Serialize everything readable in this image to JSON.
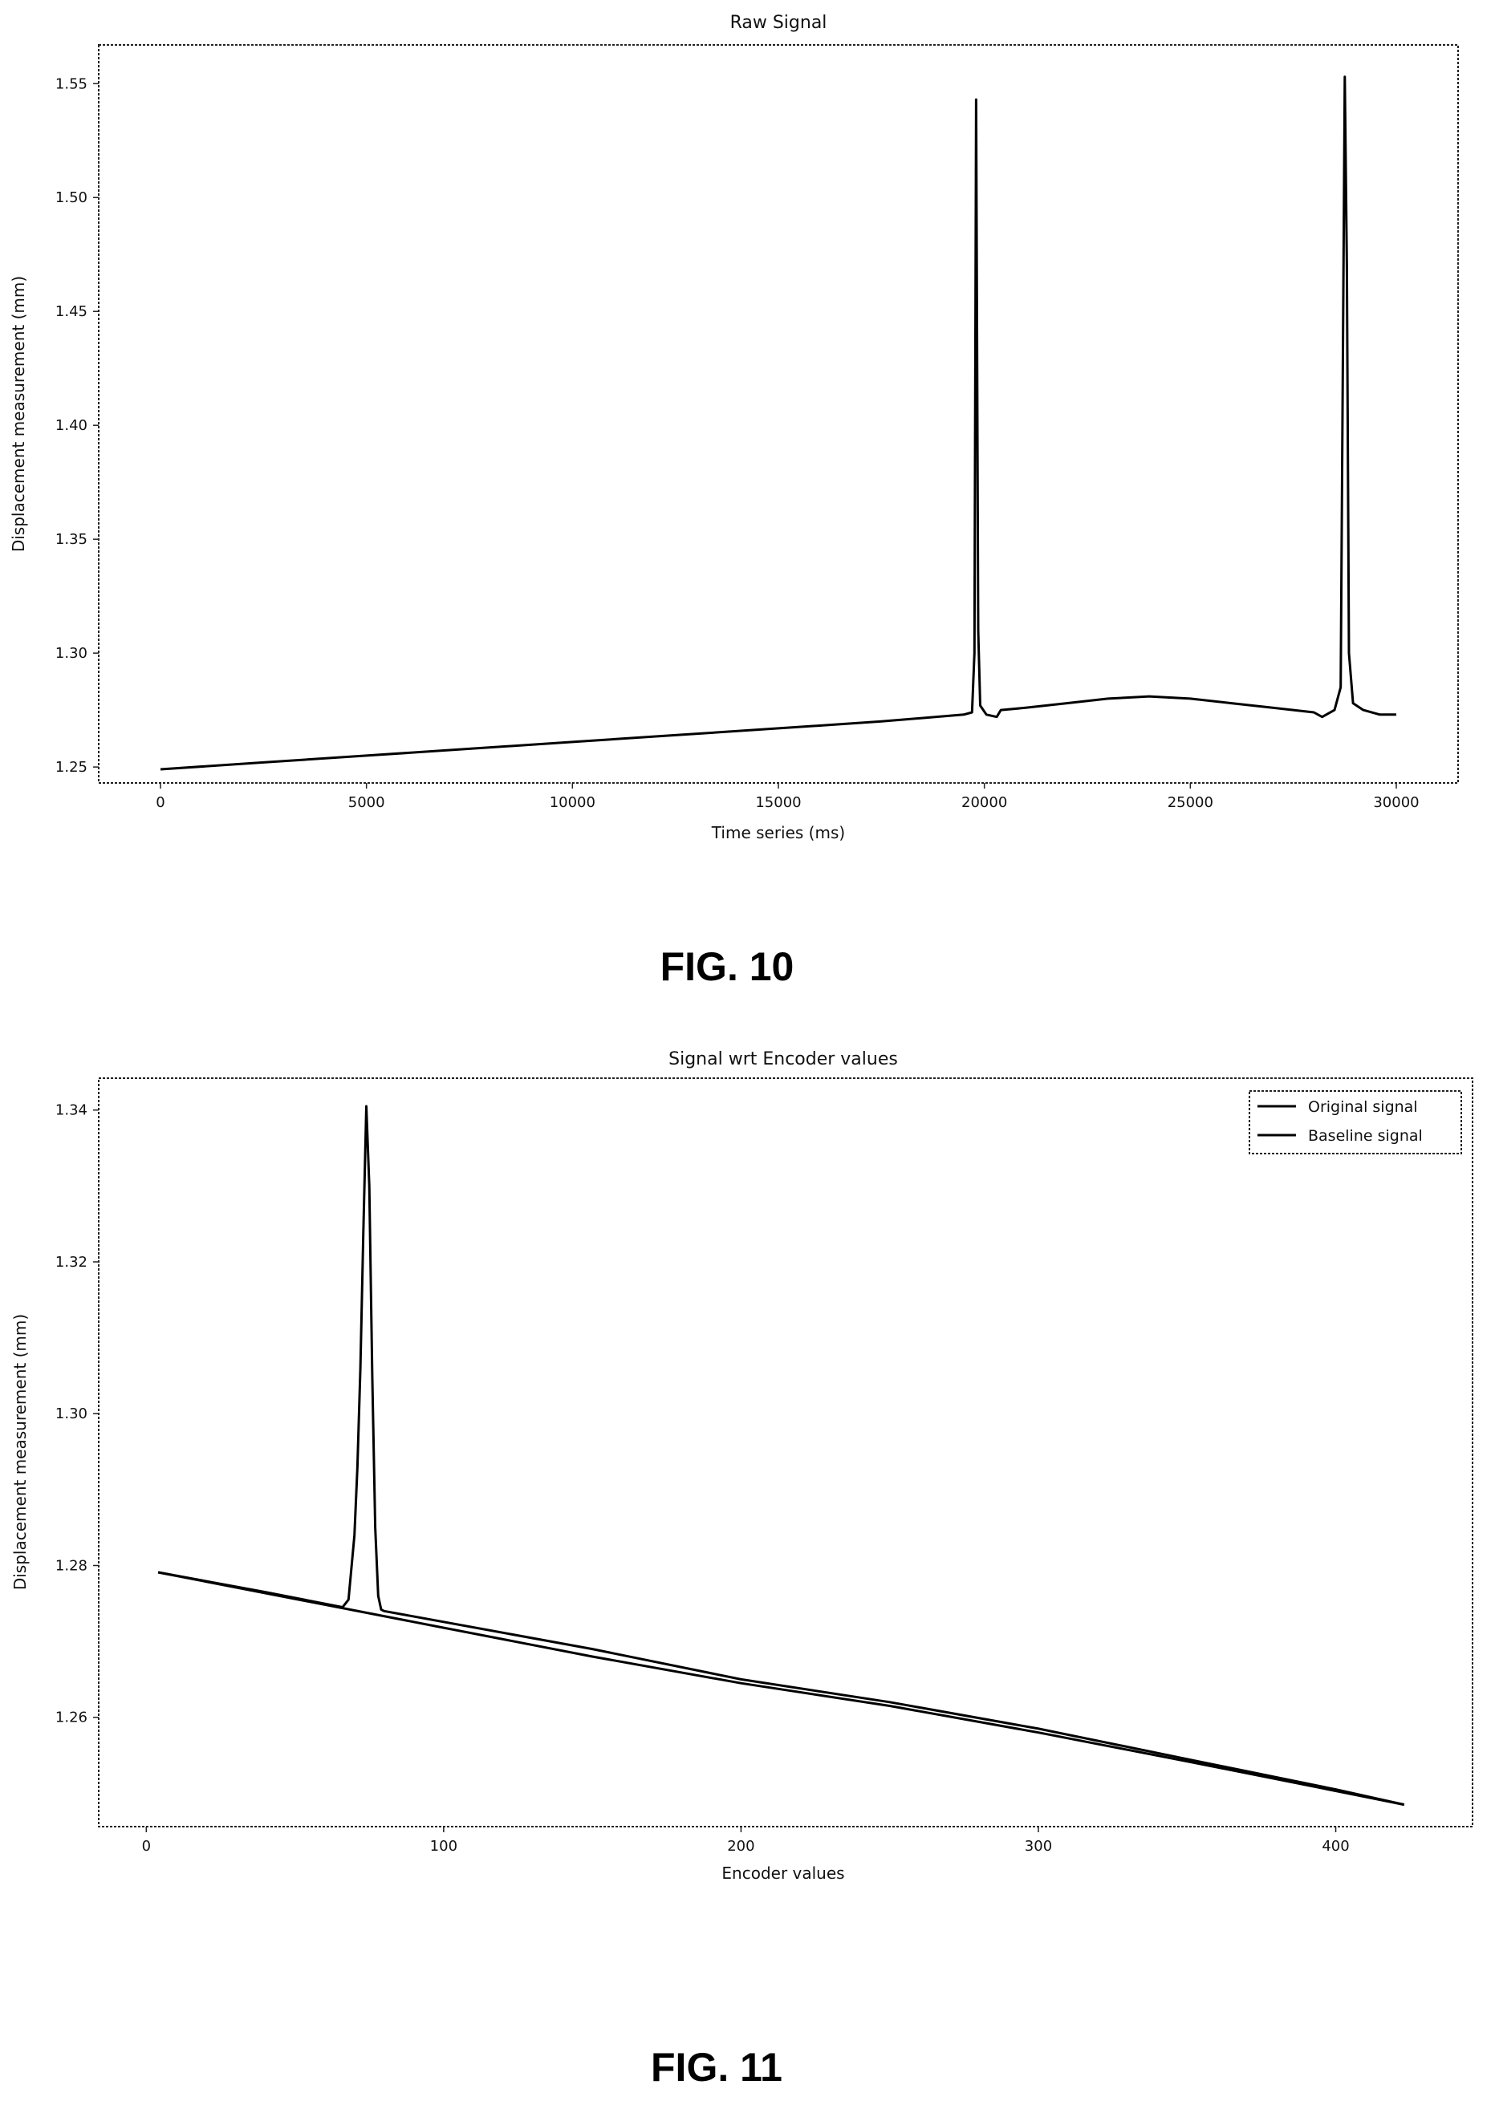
{
  "chart_data": [
    {
      "type": "line",
      "title": "Raw Signal",
      "xlabel": "Time series (ms)",
      "ylabel": "Displacement measurement (mm)",
      "xlim": [
        -1500,
        31500
      ],
      "ylim": [
        1.243,
        1.567
      ],
      "xticks": [
        0,
        5000,
        10000,
        15000,
        20000,
        25000,
        30000
      ],
      "xtick_labels": [
        "0",
        "5000",
        "10000",
        "15000",
        "20000",
        "25000",
        "30000"
      ],
      "yticks": [
        1.25,
        1.3,
        1.35,
        1.4,
        1.45,
        1.5,
        1.55
      ],
      "ytick_labels": [
        "1.25",
        "1.30",
        "1.35",
        "1.40",
        "1.45",
        "1.50",
        "1.55"
      ],
      "grid": false,
      "series": [
        {
          "x": [
            0,
            2500,
            5000,
            7500,
            10000,
            12500,
            15000,
            17500,
            19500,
            19700,
            19760,
            19800,
            19850,
            19900,
            20050,
            20300,
            20400,
            21000,
            22000,
            23000,
            24000,
            25000,
            26000,
            27000,
            28000,
            28200,
            28500,
            28650,
            28750,
            28800,
            28850,
            28950,
            29200,
            29600,
            30000
          ],
          "y": [
            1.249,
            1.252,
            1.255,
            1.258,
            1.261,
            1.264,
            1.267,
            1.27,
            1.273,
            1.274,
            1.3,
            1.543,
            1.31,
            1.277,
            1.273,
            1.272,
            1.275,
            1.276,
            1.278,
            1.28,
            1.281,
            1.28,
            1.278,
            1.276,
            1.274,
            1.272,
            1.275,
            1.285,
            1.553,
            1.47,
            1.3,
            1.278,
            1.275,
            1.273,
            1.273
          ],
          "color": "#000000"
        }
      ],
      "caption": "FIG. 10"
    },
    {
      "type": "line",
      "title": "Signal wrt Encoder values",
      "xlabel": "Encoder values",
      "ylabel": "Displacement measurement (mm)",
      "xlim": [
        -16,
        446
      ],
      "ylim": [
        1.2456,
        1.3442
      ],
      "xticks": [
        0,
        100,
        200,
        300,
        400
      ],
      "xtick_labels": [
        "0",
        "100",
        "200",
        "300",
        "400"
      ],
      "yticks": [
        1.26,
        1.28,
        1.3,
        1.32,
        1.34
      ],
      "ytick_labels": [
        "1.26",
        "1.28",
        "1.30",
        "1.32",
        "1.34"
      ],
      "grid": false,
      "legend_position": "top-right",
      "series": [
        {
          "name": "Original signal",
          "x": [
            4,
            40,
            66,
            68,
            70,
            71,
            72,
            73,
            74,
            75,
            76,
            77,
            78,
            79,
            80,
            150,
            200,
            250,
            300,
            350,
            400,
            423
          ],
          "y": [
            1.2791,
            1.2765,
            1.2745,
            1.2755,
            1.284,
            1.293,
            1.306,
            1.324,
            1.3405,
            1.33,
            1.305,
            1.285,
            1.276,
            1.2742,
            1.274,
            1.269,
            1.265,
            1.262,
            1.2585,
            1.2545,
            1.2505,
            1.2485
          ],
          "color": "#000000"
        },
        {
          "name": "Baseline signal",
          "x": [
            4,
            100,
            150,
            200,
            250,
            300,
            350,
            400,
            423
          ],
          "y": [
            1.2791,
            1.2718,
            1.268,
            1.2645,
            1.2615,
            1.258,
            1.2542,
            1.2503,
            1.2485
          ],
          "color": "#000000"
        }
      ],
      "caption": "FIG. 11"
    }
  ]
}
